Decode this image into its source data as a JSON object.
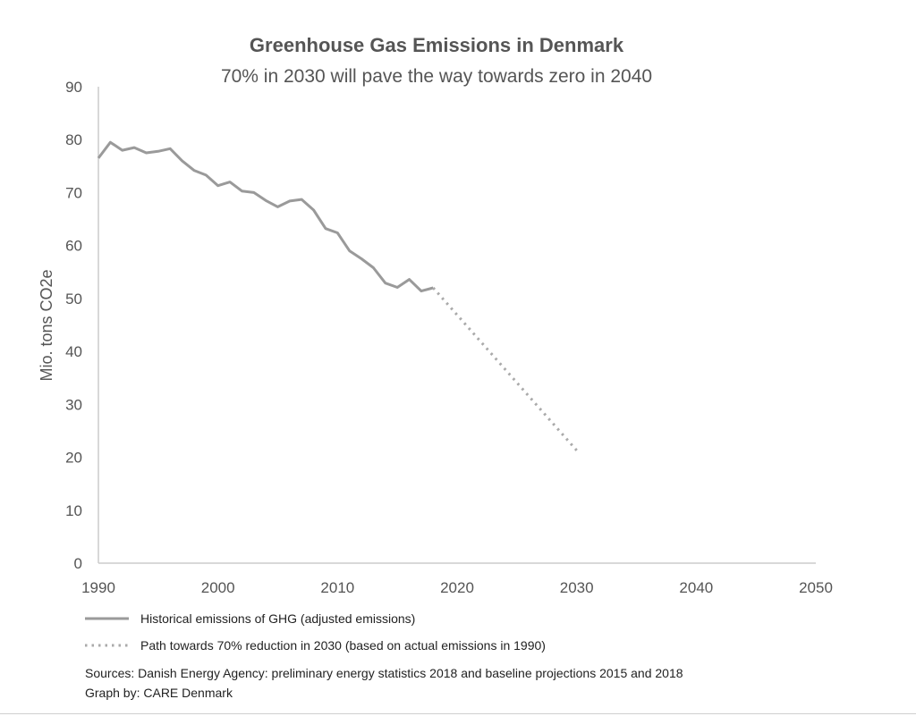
{
  "chart_data": {
    "type": "line",
    "title": "Greenhouse Gas Emissions in Denmark",
    "subtitle": "70% in 2030 will pave the way towards zero in 2040",
    "ylabel": "Mio. tons CO2e",
    "xlabel": "",
    "xlim": [
      1990,
      2050
    ],
    "ylim": [
      0,
      90
    ],
    "x_ticks": [
      "1990",
      "2000",
      "2010",
      "2020",
      "2030",
      "2040",
      "2050"
    ],
    "y_ticks": [
      "0",
      "10",
      "20",
      "30",
      "40",
      "50",
      "60",
      "70",
      "80",
      "90"
    ],
    "grid": false,
    "legend_position": "bottom",
    "series": [
      {
        "name": "Historical emissions of GHG (adjusted emissions)",
        "style": "solid",
        "color": "#9a9a9a",
        "x": [
          1990,
          1991,
          1992,
          1993,
          1994,
          1995,
          1996,
          1997,
          1998,
          1999,
          2000,
          2001,
          2002,
          2003,
          2004,
          2005,
          2006,
          2007,
          2008,
          2009,
          2010,
          2011,
          2012,
          2013,
          2014,
          2015,
          2016,
          2017,
          2018
        ],
        "y": [
          76.5,
          79.5,
          78.0,
          78.5,
          77.5,
          77.8,
          78.3,
          76.0,
          74.2,
          73.3,
          71.3,
          72.0,
          70.3,
          70.0,
          68.5,
          67.3,
          68.4,
          68.7,
          66.7,
          63.2,
          62.4,
          59.0,
          57.5,
          55.8,
          52.9,
          52.1,
          53.6,
          51.4,
          52.0
        ]
      },
      {
        "name": "Path towards 70% reduction in 2030 (based on actual emissions in 1990)",
        "style": "dotted",
        "color": "#aaaaaa",
        "x": [
          2018,
          2030
        ],
        "y": [
          52.0,
          21.3
        ]
      }
    ]
  },
  "sources": "Sources: Danish Energy Agency: preliminary energy statistics 2018 and baseline projections 2015 and 2018",
  "credit": "Graph by: CARE Denmark"
}
